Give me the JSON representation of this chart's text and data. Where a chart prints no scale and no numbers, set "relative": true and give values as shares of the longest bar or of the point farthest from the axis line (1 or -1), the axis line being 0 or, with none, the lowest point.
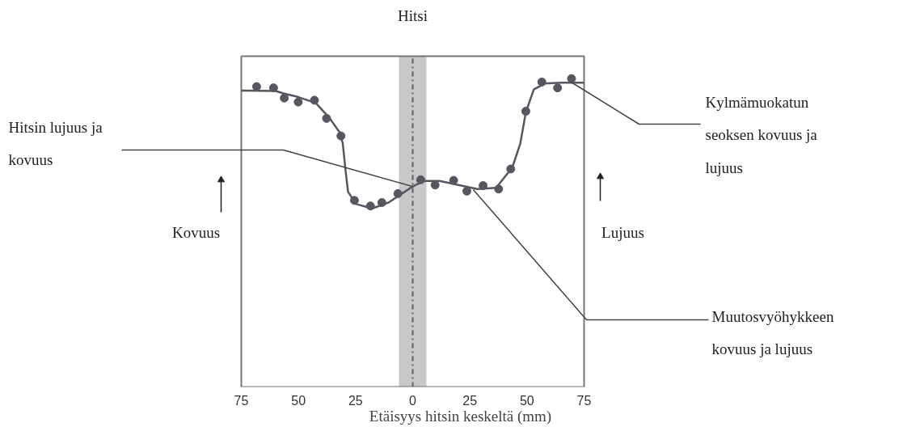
{
  "chart_data": {
    "type": "scatter",
    "relative": true,
    "xlabel": "Etäisyys hitsin keskeltä (mm)",
    "ylabel": "Kovuus",
    "y2label": "Lujuus",
    "xlim": [
      -75,
      75
    ],
    "xticks": [
      {
        "value": -75,
        "label": "75"
      },
      {
        "value": -50,
        "label": "50"
      },
      {
        "value": -25,
        "label": "25"
      },
      0,
      25,
      50,
      75
    ],
    "marker": "circle",
    "grid": false,
    "series": [
      {
        "color": "#5a5560",
        "x": [
          -68.3,
          -60.9,
          -56.2,
          -50.1,
          -43.0,
          -37.7,
          -31.4,
          -25.5,
          -18.5,
          -13.5,
          -6.5,
          3.5,
          9.8,
          17.9,
          23.7,
          30.8,
          37.6,
          42.9,
          49.5,
          56.5,
          63.4,
          69.5
        ],
        "values": [
          0.974,
          0.97,
          0.937,
          0.924,
          0.93,
          0.871,
          0.814,
          0.605,
          0.587,
          0.598,
          0.627,
          0.672,
          0.655,
          0.67,
          0.635,
          0.653,
          0.642,
          0.707,
          0.894,
          0.989,
          0.97,
          1.0
        ]
      },
      {
        "type": "line",
        "color": "#5a5560",
        "line_style": "solid",
        "marker": "none",
        "x": [
          -75,
          -60,
          -56.5,
          -50,
          -42.4,
          -36.5,
          -32,
          -30.6,
          -29.4,
          -28.3,
          -24.7,
          -17.7,
          -10.6,
          -3.5,
          0,
          4.7,
          11.8,
          20,
          28.3,
          36.5,
          43.6,
          47.1,
          49.5,
          53,
          57.7,
          65,
          75
        ],
        "values": [
          0.961,
          0.96,
          0.952,
          0.94,
          0.921,
          0.873,
          0.826,
          0.79,
          0.703,
          0.633,
          0.593,
          0.579,
          0.598,
          0.633,
          0.65,
          0.668,
          0.668,
          0.655,
          0.642,
          0.646,
          0.712,
          0.79,
          0.891,
          0.965,
          0.984,
          0.987,
          0.987
        ]
      }
    ],
    "bands": [
      {
        "axis": "x",
        "from": -6,
        "to": 6,
        "label": "Hitsi",
        "color": "#c8c8c8"
      }
    ],
    "ref_lines": [
      {
        "axis": "x",
        "value": 0,
        "label": null,
        "color": "#5a6060",
        "line_style": "dashdot"
      }
    ],
    "annotations": [
      {
        "text": "Hitsin lujuus ja\nkovuus",
        "x": 0,
        "y": 0.65
      },
      {
        "text": "Kylmämuokatun\nseoksen kovuus ja\nlujuus",
        "x": 69,
        "y": 0.99
      },
      {
        "text": "Muutosvyöhykkeen\nkovuus ja lujuus",
        "x": 26.5,
        "y": 0.64
      }
    ]
  }
}
